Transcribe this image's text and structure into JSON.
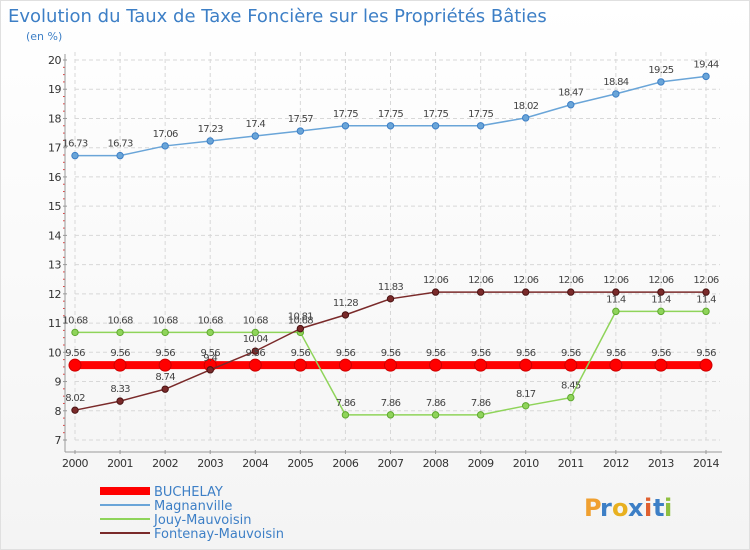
{
  "chart_data": {
    "type": "line",
    "title": "Evolution du Taux de Taxe Foncière sur les Propriétés Bâties",
    "subtitle": "(en %)",
    "xlabel": "",
    "ylabel": "",
    "ylim": [
      7,
      20
    ],
    "yticks": [
      "7",
      "8",
      "9",
      "10",
      "11",
      "12",
      "13",
      "14",
      "15",
      "16",
      "17",
      "18",
      "19",
      "20"
    ],
    "x": [
      "2000",
      "2001",
      "2002",
      "2003",
      "2004",
      "2005",
      "2006",
      "2007",
      "2008",
      "2009",
      "2010",
      "2011",
      "2012",
      "2013",
      "2014"
    ],
    "grid": true,
    "series": [
      {
        "name": "BUCHELAY",
        "color": "#ff0000",
        "values": [
          9.56,
          9.56,
          9.56,
          9.56,
          9.56,
          9.56,
          9.56,
          9.56,
          9.56,
          9.56,
          9.56,
          9.56,
          9.56,
          9.56,
          9.56
        ],
        "labels": [
          "9.56",
          "9.56",
          "9.56",
          "9.56",
          "9.56",
          "9.56",
          "9.56",
          "9.56",
          "9.56",
          "9.56",
          "9.56",
          "9.56",
          "9.56",
          "9.56",
          "9.56"
        ]
      },
      {
        "name": "Magnanville",
        "color": "#6aa5d8",
        "values": [
          16.73,
          16.73,
          17.06,
          17.23,
          17.4,
          17.57,
          17.75,
          17.75,
          17.75,
          17.75,
          18.02,
          18.47,
          18.84,
          19.25,
          19.44
        ],
        "labels": [
          "16.73",
          "16.73",
          "17.06",
          "17.23",
          "17.4",
          "17.57",
          "17.75",
          "17.75",
          "17.75",
          "17.75",
          "18.02",
          "18.47",
          "18.84",
          "19.25",
          "19.44"
        ]
      },
      {
        "name": "Jouy-Mauvoisin",
        "color": "#8fd45a",
        "values": [
          10.68,
          10.68,
          10.68,
          10.68,
          10.68,
          10.68,
          7.86,
          7.86,
          7.86,
          7.86,
          8.17,
          8.45,
          11.4,
          11.4,
          11.4
        ],
        "labels": [
          "10.68",
          "10.68",
          "10.68",
          "10.68",
          "10.68",
          "10.68",
          "7.86",
          "7.86",
          "7.86",
          "7.86",
          "8.17",
          "8.45",
          "11.4",
          "11.4",
          "11.4"
        ]
      },
      {
        "name": "Fontenay-Mauvoisin",
        "color": "#7a2a2a",
        "values": [
          8.02,
          8.33,
          8.74,
          9.4,
          10.04,
          10.81,
          11.28,
          11.83,
          12.06,
          12.06,
          12.06,
          12.06,
          12.06,
          12.06,
          12.06
        ],
        "labels": [
          "8.02",
          "8.33",
          "8.74",
          "9.4",
          "10.04",
          "10.81",
          "11.28",
          "11.83",
          "12.06",
          "12.06",
          "12.06",
          "12.06",
          "12.06",
          "12.06",
          "12.06"
        ]
      }
    ],
    "legend": "bottom-left"
  },
  "logo": {
    "text": "Proxiti",
    "colors": [
      "#f0a030",
      "#3d7fc6",
      "#e8b020",
      "#3d7fc6",
      "#e06030",
      "#3d7fc6",
      "#8fc040"
    ]
  }
}
